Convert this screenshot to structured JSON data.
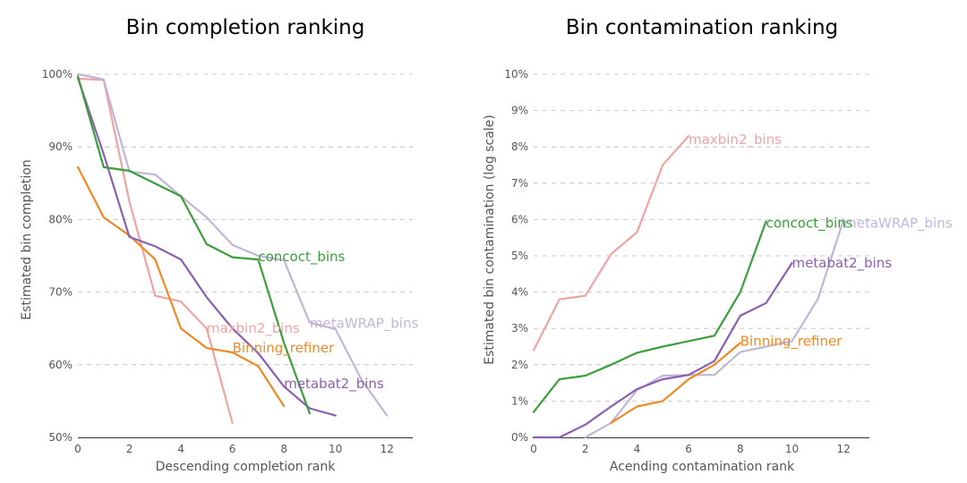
{
  "colors": {
    "maxbin2_bins": "#f0a3a3",
    "concoct_bins": "#3a9e3a",
    "metaWRAP_bins": "#c2b6d6",
    "metabat2_bins": "#8b5fb0",
    "Binning_refiner": "#ec8a26"
  },
  "chart_data": [
    {
      "type": "line",
      "title": "Bin completion ranking",
      "xlabel": "Descending completion rank",
      "ylabel": "Estimated bin completion",
      "xlim": [
        0,
        13
      ],
      "ylim": [
        50,
        100
      ],
      "x_ticks": [
        0,
        2,
        4,
        6,
        8,
        10,
        12
      ],
      "x_tick_labels": [
        "0",
        "2",
        "4",
        "6",
        "8",
        "10",
        "12"
      ],
      "y_ticks": [
        50,
        60,
        70,
        80,
        90,
        100
      ],
      "y_tick_labels": [
        "50%",
        "60%",
        "70%",
        "80%",
        "90%",
        "100%"
      ],
      "grid": true,
      "series": [
        {
          "name": "maxbin2_bins",
          "x": [
            0,
            1,
            2,
            3,
            4,
            5,
            6
          ],
          "y": [
            99.4,
            99.2,
            82.5,
            69.5,
            68.7,
            65,
            52
          ],
          "label_at": [
            5,
            65
          ]
        },
        {
          "name": "Binning_refiner",
          "x": [
            0,
            1,
            2,
            3,
            4,
            5,
            6,
            7,
            8
          ],
          "y": [
            87.2,
            80.3,
            77.8,
            74.5,
            65,
            62.3,
            61.7,
            59.8,
            54.3
          ],
          "label_at": [
            6,
            62.3
          ]
        },
        {
          "name": "metabat2_bins",
          "x": [
            0,
            1,
            2,
            3,
            4,
            5,
            6,
            7,
            8,
            9,
            10
          ],
          "y": [
            99.5,
            89,
            77.6,
            76.3,
            74.5,
            69.3,
            65,
            61.6,
            57,
            54,
            53
          ],
          "label_at": [
            8,
            57.4
          ]
        },
        {
          "name": "metaWRAP_bins",
          "x": [
            0,
            1,
            2,
            3,
            4,
            5,
            6,
            7,
            8,
            9,
            10,
            11,
            12
          ],
          "y": [
            100,
            99.3,
            86.6,
            86.2,
            83.2,
            80.3,
            76.5,
            75,
            74.4,
            65.8,
            64.9,
            58,
            53
          ],
          "label_at": [
            9,
            65.7
          ]
        },
        {
          "name": "concoct_bins",
          "x": [
            0,
            1,
            2,
            3,
            4,
            5,
            6,
            7,
            8,
            9
          ],
          "y": [
            99.7,
            87.2,
            86.7,
            null,
            83.2,
            76.6,
            74.8,
            74.5,
            63,
            53.3
          ],
          "label_at": [
            7,
            74.9
          ]
        }
      ]
    },
    {
      "type": "line",
      "title": "Bin contamination ranking",
      "xlabel": "Acending contamination rank",
      "ylabel": "Estimated bin contamination (log scale)",
      "xlim": [
        0,
        13
      ],
      "ylim": [
        0,
        10
      ],
      "x_ticks": [
        0,
        2,
        4,
        6,
        8,
        10,
        12
      ],
      "x_tick_labels": [
        "0",
        "2",
        "4",
        "6",
        "8",
        "10",
        "12"
      ],
      "y_ticks": [
        0,
        1,
        2,
        3,
        4,
        5,
        6,
        7,
        8,
        9,
        10
      ],
      "y_tick_labels": [
        "0%",
        "1%",
        "2%",
        "3%",
        "4%",
        "5%",
        "6%",
        "7%",
        "8%",
        "9%",
        "10%"
      ],
      "grid": true,
      "series": [
        {
          "name": "maxbin2_bins",
          "x": [
            0,
            1,
            2,
            3,
            4,
            5,
            6
          ],
          "y": [
            2.4,
            3.8,
            3.9,
            5.05,
            5.65,
            7.5,
            8.3
          ],
          "label_at": [
            6,
            8.2
          ]
        },
        {
          "name": "concoct_bins",
          "x": [
            0,
            1,
            2,
            3,
            4,
            5,
            6,
            7,
            8,
            9
          ],
          "y": [
            0.7,
            1.6,
            1.7,
            2,
            2.33,
            2.5,
            2.65,
            2.8,
            4,
            5.95
          ],
          "label_at": [
            9,
            5.9
          ]
        },
        {
          "name": "metaWRAP_bins",
          "x": [
            2,
            3,
            4,
            5,
            6,
            7,
            8,
            9,
            10,
            11,
            12
          ],
          "y": [
            0,
            0.4,
            1.3,
            1.7,
            1.72,
            1.72,
            2.35,
            2.5,
            2.65,
            3.8,
            6
          ],
          "label_at": [
            12,
            5.9
          ]
        },
        {
          "name": "metabat2_bins",
          "x": [
            0,
            1,
            2,
            3,
            4,
            5,
            6,
            7,
            8,
            9,
            10
          ],
          "y": [
            0,
            0,
            0.35,
            0.85,
            1.33,
            1.6,
            1.72,
            2.1,
            3.35,
            3.7,
            4.8
          ],
          "label_at": [
            10,
            4.8
          ]
        },
        {
          "name": "Binning_refiner",
          "x": [
            3,
            4,
            5,
            6,
            7,
            8
          ],
          "y": [
            0.4,
            0.85,
            1,
            1.6,
            2,
            2.6
          ],
          "label_at": [
            8,
            2.65
          ]
        }
      ]
    }
  ]
}
